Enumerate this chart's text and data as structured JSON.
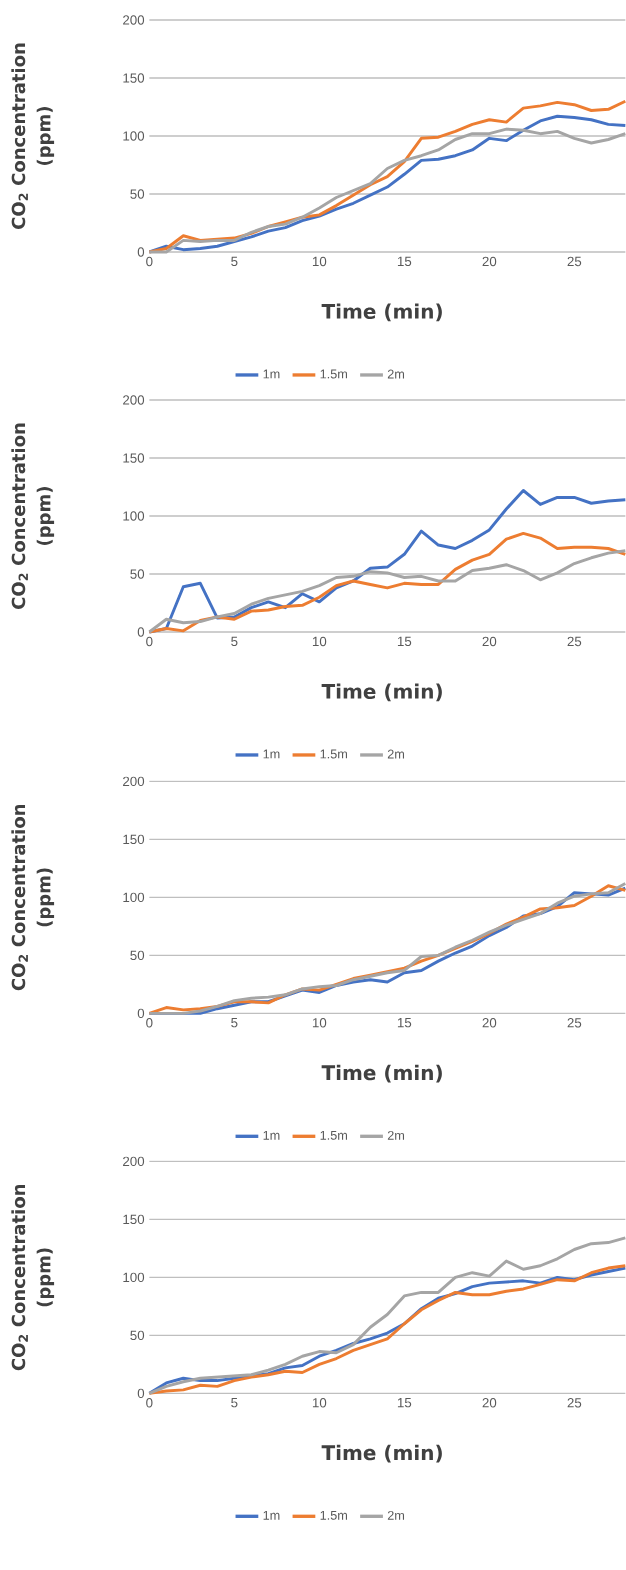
{
  "chart_data": [
    {
      "type": "line",
      "xlabel": "Time (min)",
      "ylabel": "CO$_{2}$ Concentration (ppm)",
      "x": [
        0,
        1,
        2,
        3,
        4,
        5,
        6,
        7,
        8,
        9,
        10,
        11,
        12,
        13,
        14,
        15,
        16,
        17,
        18,
        19,
        20,
        21,
        22,
        23,
        24,
        25,
        26,
        27,
        28
      ],
      "xlim": [
        0,
        28
      ],
      "xticks": [
        0,
        5,
        10,
        15,
        20,
        25
      ],
      "ylim": [
        0,
        200
      ],
      "yticks": [
        0,
        50,
        100,
        150,
        200
      ],
      "grid": "y",
      "legend": "bottom",
      "marker": "none",
      "line_style": "solid",
      "series": [
        {
          "name": "1m",
          "color": "#4472c4",
          "values": [
            0,
            5,
            2,
            3,
            5,
            9,
            13,
            18,
            21,
            27,
            31,
            37,
            42,
            49,
            56,
            67,
            79,
            80,
            83,
            88,
            98,
            96,
            105,
            113,
            117,
            116,
            114,
            110,
            109
          ]
        },
        {
          "name": "1.5m",
          "color": "#ed7d31",
          "values": [
            0,
            3,
            14,
            10,
            11,
            12,
            16,
            22,
            26,
            30,
            32,
            40,
            49,
            58,
            65,
            78,
            98,
            99,
            104,
            110,
            114,
            112,
            124,
            126,
            129,
            127,
            122,
            123,
            130
          ]
        },
        {
          "name": "2m",
          "color": "#a5a5a5",
          "values": [
            0,
            0,
            10,
            9,
            10,
            10,
            17,
            22,
            24,
            30,
            38,
            47,
            53,
            59,
            72,
            79,
            83,
            88,
            97,
            102,
            102,
            106,
            105,
            102,
            104,
            98,
            94,
            97,
            102
          ]
        }
      ]
    },
    {
      "type": "line",
      "xlabel": "Time (min)",
      "ylabel": "CO$_{2}$ Concentration (ppm)",
      "x": [
        0,
        1,
        2,
        3,
        4,
        5,
        6,
        7,
        8,
        9,
        10,
        11,
        12,
        13,
        14,
        15,
        16,
        17,
        18,
        19,
        20,
        21,
        22,
        23,
        24,
        25,
        26,
        27,
        28
      ],
      "xlim": [
        0,
        28
      ],
      "xticks": [
        0,
        5,
        10,
        15,
        20,
        25
      ],
      "ylim": [
        0,
        200
      ],
      "yticks": [
        0,
        50,
        100,
        150,
        200
      ],
      "grid": "y",
      "legend": "bottom",
      "marker": "none",
      "line_style": "solid",
      "series": [
        {
          "name": "1m",
          "color": "#4472c4",
          "values": [
            0,
            3,
            39,
            42,
            12,
            13,
            21,
            26,
            21,
            33,
            26,
            38,
            44,
            55,
            56,
            67,
            87,
            75,
            72,
            79,
            88,
            106,
            122,
            110,
            116,
            116,
            111,
            113,
            114
          ]
        },
        {
          "name": "1.5m",
          "color": "#ed7d31",
          "values": [
            0,
            3,
            1,
            10,
            13,
            11,
            18,
            19,
            22,
            23,
            30,
            40,
            44,
            41,
            38,
            42,
            41,
            41,
            54,
            62,
            67,
            80,
            85,
            81,
            72,
            73,
            73,
            72,
            67
          ]
        },
        {
          "name": "2m",
          "color": "#a5a5a5",
          "values": [
            0,
            11,
            8,
            9,
            13,
            16,
            24,
            29,
            32,
            35,
            40,
            47,
            48,
            52,
            51,
            47,
            48,
            44,
            44,
            53,
            55,
            58,
            53,
            45,
            51,
            59,
            64,
            68,
            70
          ]
        }
      ]
    },
    {
      "type": "line",
      "xlabel": "Time (min)",
      "ylabel": "CO$_{2}$ Concentration (ppm)",
      "x": [
        0,
        1,
        2,
        3,
        4,
        5,
        6,
        7,
        8,
        9,
        10,
        11,
        12,
        13,
        14,
        15,
        16,
        17,
        18,
        19,
        20,
        21,
        22,
        23,
        24,
        25,
        26,
        27,
        28
      ],
      "xlim": [
        0,
        28
      ],
      "xticks": [
        0,
        5,
        10,
        15,
        20,
        25
      ],
      "ylim": [
        0,
        200
      ],
      "yticks": [
        0,
        50,
        100,
        150,
        200
      ],
      "grid": "y",
      "legend": "bottom",
      "marker": "none",
      "line_style": "solid",
      "series": [
        {
          "name": "1m",
          "color": "#4472c4",
          "values": [
            0,
            0,
            0,
            0,
            4,
            7,
            10,
            10,
            15,
            20,
            18,
            24,
            27,
            29,
            27,
            35,
            37,
            45,
            52,
            58,
            67,
            74,
            84,
            86,
            92,
            104,
            103,
            102,
            108
          ]
        },
        {
          "name": "1.5m",
          "color": "#ed7d31",
          "values": [
            0,
            5,
            3,
            4,
            6,
            10,
            10,
            9,
            16,
            21,
            20,
            25,
            30,
            33,
            36,
            39,
            45,
            50,
            56,
            62,
            69,
            77,
            83,
            90,
            91,
            93,
            101,
            110,
            106
          ]
        },
        {
          "name": "2m",
          "color": "#a5a5a5",
          "values": [
            0,
            0,
            0,
            2,
            6,
            11,
            13,
            14,
            16,
            21,
            23,
            24,
            29,
            32,
            35,
            37,
            49,
            50,
            57,
            63,
            70,
            76,
            81,
            86,
            95,
            101,
            103,
            104,
            112
          ]
        }
      ]
    },
    {
      "type": "line",
      "xlabel": "Time (min)",
      "ylabel": "CO$_{2}$ Concentration (ppm)",
      "x": [
        0,
        1,
        2,
        3,
        4,
        5,
        6,
        7,
        8,
        9,
        10,
        11,
        12,
        13,
        14,
        15,
        16,
        17,
        18,
        19,
        20,
        21,
        22,
        23,
        24,
        25,
        26,
        27,
        28
      ],
      "xlim": [
        0,
        28
      ],
      "xticks": [
        0,
        5,
        10,
        15,
        20,
        25
      ],
      "ylim": [
        0,
        200
      ],
      "yticks": [
        0,
        50,
        100,
        150,
        200
      ],
      "grid": "y",
      "legend": "bottom",
      "marker": "none",
      "line_style": "solid",
      "series": [
        {
          "name": "1m",
          "color": "#4472c4",
          "values": [
            0,
            9,
            13,
            11,
            11,
            13,
            15,
            17,
            22,
            24,
            32,
            37,
            43,
            47,
            52,
            60,
            73,
            82,
            86,
            92,
            95,
            96,
            97,
            95,
            100,
            98,
            102,
            105,
            108
          ]
        },
        {
          "name": "1.5m",
          "color": "#ed7d31",
          "values": [
            0,
            2,
            3,
            7,
            6,
            11,
            14,
            16,
            19,
            18,
            25,
            30,
            37,
            42,
            47,
            60,
            72,
            80,
            87,
            85,
            85,
            88,
            90,
            94,
            98,
            97,
            104,
            108,
            110
          ]
        },
        {
          "name": "2m",
          "color": "#a5a5a5",
          "values": [
            0,
            6,
            10,
            13,
            14,
            15,
            16,
            20,
            25,
            32,
            36,
            35,
            42,
            57,
            68,
            84,
            87,
            87,
            100,
            104,
            101,
            114,
            107,
            110,
            116,
            124,
            129,
            130,
            134
          ]
        }
      ]
    }
  ]
}
